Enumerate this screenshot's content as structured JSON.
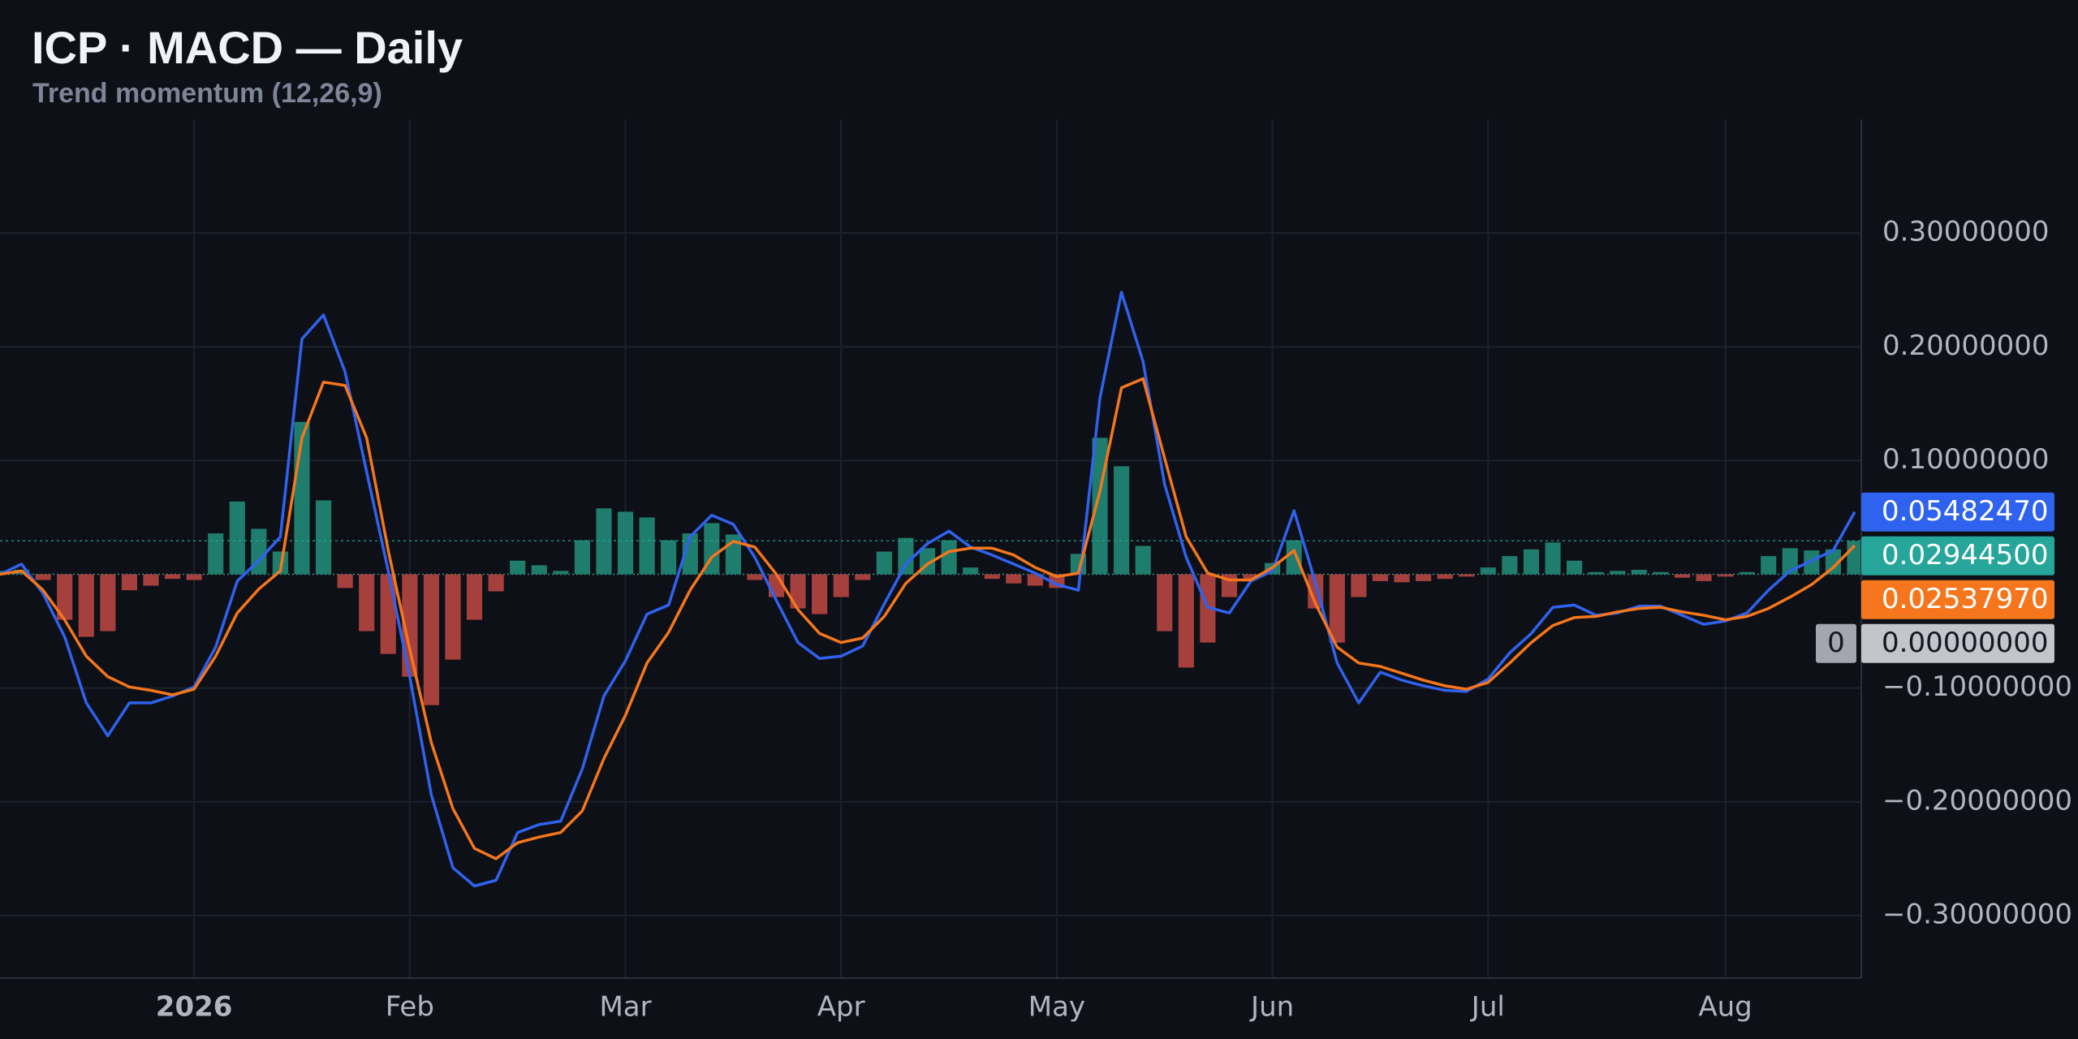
{
  "chart_data": {
    "type": "macd",
    "title": "ICP · MACD — Daily",
    "subtitle": "Trend momentum (12,26,9)",
    "categories": [
      null,
      null,
      null,
      null,
      null,
      null,
      null,
      null,
      null,
      "2026",
      null,
      null,
      null,
      null,
      null,
      null,
      null,
      null,
      null,
      "Feb",
      null,
      null,
      null,
      null,
      null,
      null,
      null,
      null,
      null,
      "Mar",
      null,
      null,
      null,
      null,
      null,
      null,
      null,
      null,
      null,
      "Apr",
      null,
      null,
      null,
      null,
      null,
      null,
      null,
      null,
      null,
      "May",
      null,
      null,
      null,
      null,
      null,
      null,
      null,
      null,
      null,
      "Jun",
      null,
      null,
      null,
      null,
      null,
      null,
      null,
      null,
      null,
      "Jul",
      null,
      null,
      null,
      null,
      null,
      null,
      null,
      null,
      null,
      null,
      "Aug",
      null,
      null,
      null,
      null,
      null,
      null
    ],
    "series": [
      {
        "kind": "histogram",
        "color": "#26a69a",
        "color_up": "#1f7d6d",
        "color_down": "#a6403d",
        "last_label": "0.02944500",
        "values": [
          0.003,
          0.004,
          -0.005,
          -0.04,
          -0.055,
          -0.05,
          -0.014,
          -0.01,
          -0.004,
          -0.005,
          0.036,
          0.064,
          0.04,
          0.02,
          0.134,
          0.065,
          -0.012,
          -0.05,
          -0.07,
          -0.09,
          -0.115,
          -0.075,
          -0.04,
          -0.015,
          0.012,
          0.008,
          0.003,
          0.03,
          0.058,
          0.055,
          0.05,
          0.03,
          0.036,
          0.045,
          0.035,
          -0.005,
          -0.02,
          -0.03,
          -0.035,
          -0.02,
          -0.005,
          0.02,
          0.032,
          0.023,
          0.03,
          0.006,
          -0.004,
          -0.008,
          -0.01,
          -0.012,
          0.018,
          0.12,
          0.095,
          0.025,
          -0.05,
          -0.082,
          -0.06,
          -0.02,
          -0.004,
          0.01,
          0.03,
          -0.03,
          -0.06,
          -0.02,
          -0.006,
          -0.007,
          -0.006,
          -0.004,
          -0.002,
          0.006,
          0.016,
          0.022,
          0.028,
          0.012,
          0.002,
          0.003,
          0.004,
          0.002,
          -0.003,
          -0.006,
          -0.002,
          0.002,
          0.016,
          0.023,
          0.021,
          0.022,
          0.029445
        ]
      },
      {
        "kind": "line",
        "color": "#2f62ee",
        "last_label": "0.05482470",
        "values": [
          0,
          0.009,
          -0.017,
          -0.055,
          -0.113,
          -0.142,
          -0.113,
          -0.113,
          -0.107,
          -0.099,
          -0.064,
          -0.006,
          0.012,
          0.033,
          0.207,
          0.228,
          0.178,
          0.09,
          0.003,
          -0.09,
          -0.194,
          -0.258,
          -0.274,
          -0.269,
          -0.227,
          -0.22,
          -0.217,
          -0.171,
          -0.107,
          -0.076,
          -0.035,
          -0.027,
          0.033,
          0.052,
          0.044,
          0.015,
          -0.023,
          -0.06,
          -0.074,
          -0.072,
          -0.063,
          -0.026,
          0.009,
          0.027,
          0.038,
          0.024,
          0.017,
          0.009,
          0.001,
          -0.009,
          -0.014,
          0.155,
          0.248,
          0.187,
          0.079,
          0.015,
          -0.029,
          -0.034,
          -0.006,
          0.003,
          0.056,
          -0.008,
          -0.078,
          -0.113,
          -0.086,
          -0.093,
          -0.098,
          -0.102,
          -0.103,
          -0.092,
          -0.069,
          -0.052,
          -0.029,
          -0.027,
          -0.036,
          -0.034,
          -0.028,
          -0.028,
          -0.036,
          -0.044,
          -0.041,
          -0.034,
          -0.014,
          0.003,
          0.012,
          0.021,
          0.0548247
        ]
      },
      {
        "kind": "line",
        "color": "#f5761c",
        "last_label": "0.02537970",
        "values": [
          0,
          0.003,
          -0.014,
          -0.04,
          -0.072,
          -0.09,
          -0.099,
          -0.102,
          -0.106,
          -0.101,
          -0.072,
          -0.034,
          -0.013,
          0.003,
          0.12,
          0.169,
          0.166,
          0.12,
          0.021,
          -0.066,
          -0.148,
          -0.206,
          -0.241,
          -0.25,
          -0.236,
          -0.231,
          -0.227,
          -0.208,
          -0.162,
          -0.124,
          -0.078,
          -0.051,
          -0.014,
          0.015,
          0.029,
          0.024,
          0,
          -0.031,
          -0.052,
          -0.06,
          -0.056,
          -0.037,
          -0.008,
          0.009,
          0.02,
          0.023,
          0.023,
          0.017,
          0.006,
          -0.002,
          0.001,
          0.073,
          0.164,
          0.172,
          0.102,
          0.033,
          0.001,
          -0.005,
          -0.005,
          0.006,
          0.021,
          -0.026,
          -0.064,
          -0.078,
          -0.081,
          -0.087,
          -0.093,
          -0.098,
          -0.101,
          -0.095,
          -0.078,
          -0.06,
          -0.045,
          -0.038,
          -0.037,
          -0.033,
          -0.03,
          -0.029,
          -0.033,
          -0.036,
          -0.04,
          -0.037,
          -0.03,
          -0.02,
          -0.009,
          0.006,
          0.0253797
        ]
      }
    ],
    "ylim": [
      -0.355,
      0.4
    ],
    "yticks": [
      {
        "value": 0.3,
        "label": "0.30000000"
      },
      {
        "value": 0.2,
        "label": "0.20000000"
      },
      {
        "value": 0.1,
        "label": "0.10000000"
      },
      {
        "value": -0.1,
        "label": "−0.10000000"
      },
      {
        "value": -0.2,
        "label": "−0.20000000"
      },
      {
        "value": -0.3,
        "label": "−0.30000000"
      }
    ],
    "zero_tag": {
      "value": 0,
      "badge": "0",
      "label": "0.00000000"
    },
    "grid": true
  }
}
